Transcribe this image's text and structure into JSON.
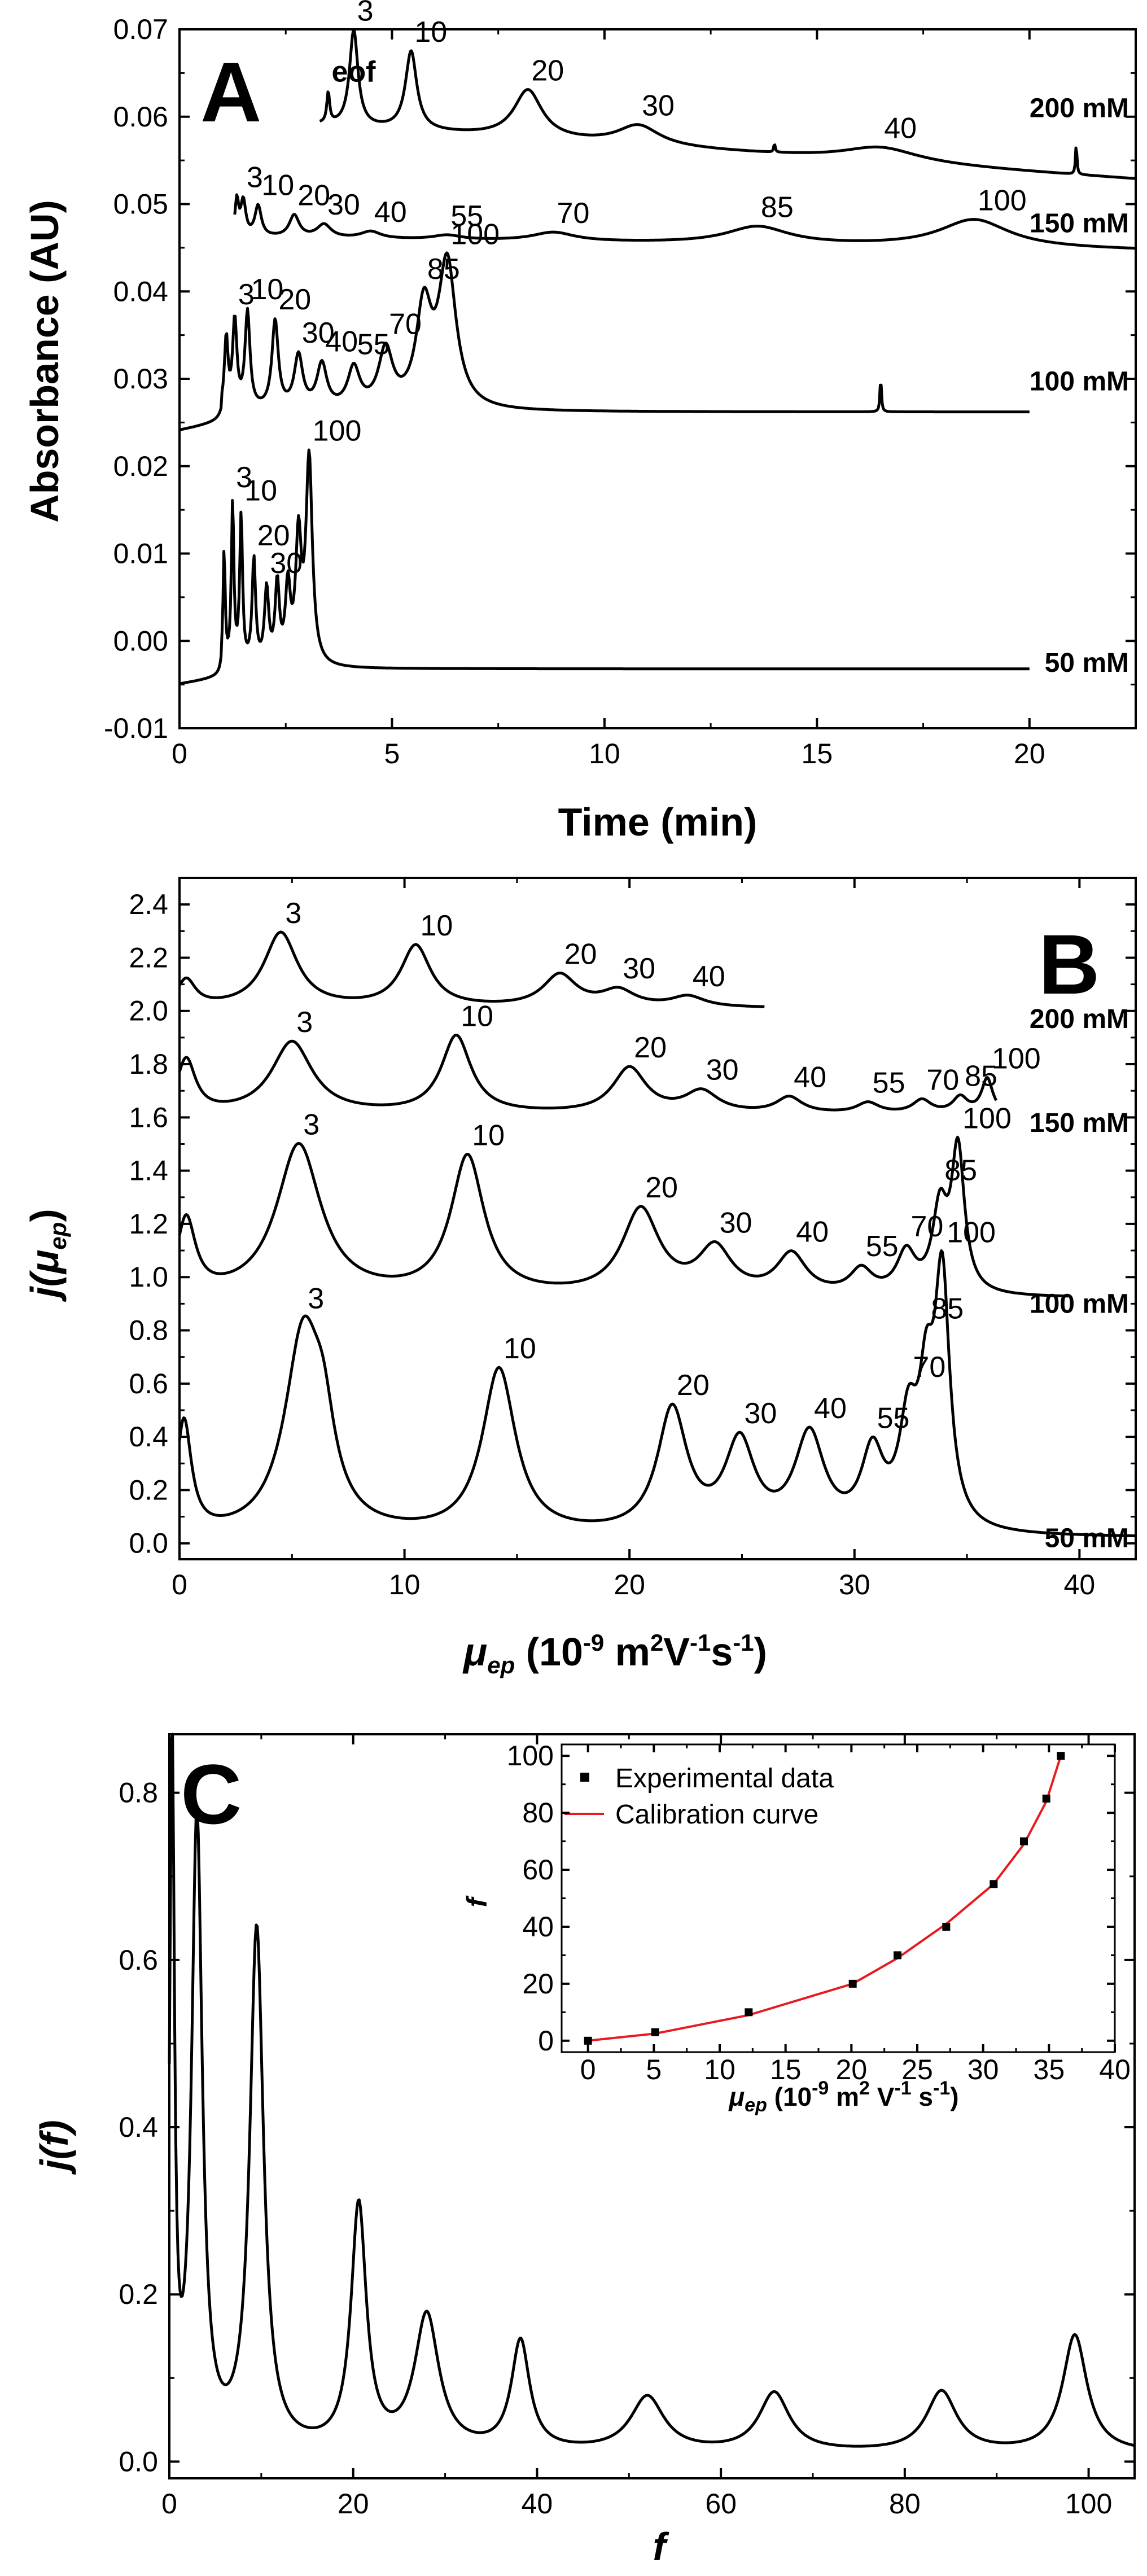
{
  "chart_data": [
    {
      "type": "line",
      "panel_label": "A",
      "xlabel": "Time (min)",
      "ylabel": "Absorbance (AU)",
      "xlim": [
        0,
        22.5
      ],
      "ylim": [
        -0.01,
        0.07
      ],
      "x_ticks": [
        0,
        5,
        10,
        15,
        20
      ],
      "y_ticks": [
        -0.01,
        0.0,
        0.01,
        0.02,
        0.03,
        0.04,
        0.05,
        0.06,
        0.07
      ],
      "y_tick_labels": [
        "-0.01",
        "0.00",
        "0.01",
        "0.02",
        "0.03",
        "0.04",
        "0.05",
        "0.06",
        "0.07"
      ],
      "series": [
        {
          "name": "200 mM",
          "baseline": 0.059,
          "drift_per_min": -0.00032,
          "t_start": 3.3,
          "t_end": 22.5,
          "pre_value": null,
          "peaks": [
            {
              "label": "eof",
              "x": 3.5,
              "height": 0.0035,
              "width": 0.04
            },
            {
              "label": "3",
              "x": 4.1,
              "height": 0.011,
              "width": 0.12
            },
            {
              "label": "10",
              "x": 5.45,
              "height": 0.009,
              "width": 0.16
            },
            {
              "label": "20",
              "x": 8.2,
              "height": 0.0055,
              "width": 0.4
            },
            {
              "label": "30",
              "x": 10.8,
              "height": 0.0023,
              "width": 0.6
            },
            {
              "label": "",
              "x": 14.0,
              "height": 0.001,
              "width": 0.02
            },
            {
              "label": "40",
              "x": 16.5,
              "height": 0.0017,
              "width": 1.1
            },
            {
              "label": "",
              "x": 21.1,
              "height": 0.0035,
              "width": 0.02
            }
          ]
        },
        {
          "name": "150 mM",
          "baseline": 0.0462,
          "drift_per_min": -7e-05,
          "t_start": 1.3,
          "t_end": 22.5,
          "pre_value": null,
          "peaks": [
            {
              "label": "",
              "x": 1.35,
              "height": 0.004,
              "width": 0.05
            },
            {
              "label": "3",
              "x": 1.5,
              "height": 0.004,
              "width": 0.07
            },
            {
              "label": "10",
              "x": 1.85,
              "height": 0.0035,
              "width": 0.09
            },
            {
              "label": "20",
              "x": 2.7,
              "height": 0.0025,
              "width": 0.14
            },
            {
              "label": "30",
              "x": 3.4,
              "height": 0.0015,
              "width": 0.2
            },
            {
              "label": "40",
              "x": 4.5,
              "height": 0.0008,
              "width": 0.28
            },
            {
              "label": "55",
              "x": 6.3,
              "height": 0.0005,
              "width": 0.4
            },
            {
              "label": "70",
              "x": 8.8,
              "height": 0.001,
              "width": 0.6
            },
            {
              "label": "85",
              "x": 13.6,
              "height": 0.002,
              "width": 0.9
            },
            {
              "label": "100",
              "x": 18.7,
              "height": 0.0032,
              "width": 1.0
            }
          ]
        },
        {
          "name": "100 mM",
          "baseline": 0.0262,
          "drift_per_min": 0.0,
          "t_start": 0.0,
          "t_end": 20.0,
          "pre_value": 0.024,
          "peaks": [
            {
              "label": "",
              "x": 1.1,
              "height": 0.008,
              "width": 0.05
            },
            {
              "label": "3",
              "x": 1.3,
              "height": 0.01,
              "width": 0.06
            },
            {
              "label": "10",
              "x": 1.6,
              "height": 0.011,
              "width": 0.07
            },
            {
              "label": "20",
              "x": 2.25,
              "height": 0.01,
              "width": 0.09
            },
            {
              "label": "30",
              "x": 2.8,
              "height": 0.006,
              "width": 0.12
            },
            {
              "label": "40",
              "x": 3.35,
              "height": 0.005,
              "width": 0.14
            },
            {
              "label": "55",
              "x": 4.1,
              "height": 0.0045,
              "width": 0.17
            },
            {
              "label": "70",
              "x": 4.85,
              "height": 0.0065,
              "width": 0.2
            },
            {
              "label": "85",
              "x": 5.75,
              "height": 0.011,
              "width": 0.22
            },
            {
              "label": "100",
              "x": 6.3,
              "height": 0.0165,
              "width": 0.25
            },
            {
              "label": "",
              "x": 16.5,
              "height": 0.004,
              "width": 0.02
            }
          ]
        },
        {
          "name": "50 mM",
          "baseline": -0.0032,
          "drift_per_min": 0.0,
          "t_start": 0.0,
          "t_end": 20.0,
          "pre_value": -0.005,
          "peaks": [
            {
              "label": "",
              "x": 1.05,
              "height": 0.013,
              "width": 0.03
            },
            {
              "label": "3",
              "x": 1.25,
              "height": 0.0185,
              "width": 0.035
            },
            {
              "label": "10",
              "x": 1.45,
              "height": 0.017,
              "width": 0.04
            },
            {
              "label": "20",
              "x": 1.75,
              "height": 0.012,
              "width": 0.05
            },
            {
              "label": "30",
              "x": 2.05,
              "height": 0.0085,
              "width": 0.06
            },
            {
              "label": "",
              "x": 2.3,
              "height": 0.009,
              "width": 0.06
            },
            {
              "label": "",
              "x": 2.55,
              "height": 0.0085,
              "width": 0.07
            },
            {
              "label": "",
              "x": 2.8,
              "height": 0.014,
              "width": 0.08
            },
            {
              "label": "100",
              "x": 3.05,
              "height": 0.0235,
              "width": 0.09
            }
          ]
        }
      ]
    },
    {
      "type": "line",
      "panel_label": "B",
      "xlabel": "μ_ep (10^-9 m^2V^-1s^-1)",
      "ylabel": "j(μ_ep)",
      "xlim": [
        0,
        42.5
      ],
      "ylim": [
        -0.06,
        2.5
      ],
      "x_ticks": [
        0,
        10,
        20,
        30,
        40
      ],
      "y_ticks": [
        0.0,
        0.2,
        0.4,
        0.6,
        0.8,
        1.0,
        1.2,
        1.4,
        1.6,
        1.8,
        2.0,
        2.2,
        2.4
      ],
      "y_tick_labels": [
        "0.0",
        "0.2",
        "0.4",
        "0.6",
        "0.8",
        "1.0",
        "1.2",
        "1.4",
        "1.6",
        "1.8",
        "2.0",
        "2.2",
        "2.4"
      ],
      "series": [
        {
          "name": "200 mM",
          "baseline": 2.01,
          "x_start": 0,
          "x_end": 26,
          "peaks": [
            {
              "label": "",
              "x": 0.3,
              "height": 0.1,
              "width": 0.5
            },
            {
              "label": "3",
              "x": 4.5,
              "height": 0.28,
              "width": 0.9
            },
            {
              "label": "10",
              "x": 10.5,
              "height": 0.23,
              "width": 0.8
            },
            {
              "label": "20",
              "x": 16.9,
              "height": 0.12,
              "width": 0.9
            },
            {
              "label": "30",
              "x": 19.5,
              "height": 0.06,
              "width": 0.9
            },
            {
              "label": "40",
              "x": 22.6,
              "height": 0.04,
              "width": 0.9
            }
          ]
        },
        {
          "name": "150 mM",
          "baseline": 1.61,
          "x_start": 0,
          "x_end": 36.3,
          "peaks": [
            {
              "label": "",
              "x": 0.3,
              "height": 0.2,
              "width": 0.5
            },
            {
              "label": "3",
              "x": 5.0,
              "height": 0.27,
              "width": 1.1
            },
            {
              "label": "10",
              "x": 12.3,
              "height": 0.29,
              "width": 0.8
            },
            {
              "label": "20",
              "x": 20.0,
              "height": 0.17,
              "width": 0.9
            },
            {
              "label": "30",
              "x": 23.2,
              "height": 0.08,
              "width": 0.9
            },
            {
              "label": "40",
              "x": 27.1,
              "height": 0.06,
              "width": 0.7
            },
            {
              "label": "55",
              "x": 30.6,
              "height": 0.04,
              "width": 0.6
            },
            {
              "label": "70",
              "x": 33.0,
              "height": 0.05,
              "width": 0.5
            },
            {
              "label": "85",
              "x": 34.7,
              "height": 0.06,
              "width": 0.4
            },
            {
              "label": "100",
              "x": 35.9,
              "height": 0.13,
              "width": 0.3
            }
          ]
        },
        {
          "name": "100 mM",
          "baseline": 0.92,
          "x_start": 0,
          "x_end": 39.5,
          "peaks": [
            {
              "label": "",
              "x": 0.3,
              "height": 0.28,
              "width": 0.5
            },
            {
              "label": "3",
              "x": 5.3,
              "height": 0.57,
              "width": 1.2
            },
            {
              "label": "10",
              "x": 12.8,
              "height": 0.52,
              "width": 0.9
            },
            {
              "label": "20",
              "x": 20.5,
              "height": 0.32,
              "width": 1.0
            },
            {
              "label": "30",
              "x": 23.8,
              "height": 0.17,
              "width": 0.9
            },
            {
              "label": "40",
              "x": 27.2,
              "height": 0.15,
              "width": 0.8
            },
            {
              "label": "55",
              "x": 30.3,
              "height": 0.09,
              "width": 0.6
            },
            {
              "label": "70",
              "x": 32.3,
              "height": 0.15,
              "width": 0.5
            },
            {
              "label": "85",
              "x": 33.8,
              "height": 0.3,
              "width": 0.4
            },
            {
              "label": "100",
              "x": 34.6,
              "height": 0.53,
              "width": 0.35
            }
          ]
        },
        {
          "name": "50 mM",
          "baseline": 0.02,
          "x_start": 0,
          "x_end": 42.5,
          "peaks": [
            {
              "label": "",
              "x": 0.2,
              "height": 0.42,
              "width": 0.4
            },
            {
              "label": "3",
              "x": 5.5,
              "height": 0.74,
              "width": 1.0
            },
            {
              "label": "",
              "x": 6.4,
              "height": 0.25,
              "width": 0.6
            },
            {
              "label": "10",
              "x": 14.2,
              "height": 0.62,
              "width": 0.9
            },
            {
              "label": "20",
              "x": 21.9,
              "height": 0.46,
              "width": 0.8
            },
            {
              "label": "30",
              "x": 24.9,
              "height": 0.33,
              "width": 0.8
            },
            {
              "label": "40",
              "x": 28.0,
              "height": 0.36,
              "width": 0.8
            },
            {
              "label": "55",
              "x": 30.8,
              "height": 0.28,
              "width": 0.6
            },
            {
              "label": "70",
              "x": 32.4,
              "height": 0.37,
              "width": 0.5
            },
            {
              "label": "85",
              "x": 33.2,
              "height": 0.43,
              "width": 0.4
            },
            {
              "label": "100",
              "x": 33.9,
              "height": 0.91,
              "width": 0.4
            }
          ]
        }
      ]
    },
    {
      "type": "line",
      "panel_label": "C",
      "xlabel": "f",
      "ylabel": "j(f)",
      "xlim": [
        0,
        105
      ],
      "ylim": [
        -0.02,
        0.87
      ],
      "x_ticks": [
        0,
        20,
        40,
        60,
        80,
        100
      ],
      "y_ticks": [
        0.0,
        0.2,
        0.4,
        0.6,
        0.8
      ],
      "y_tick_labels": [
        "0.0",
        "0.2",
        "0.4",
        "0.6",
        "0.8"
      ],
      "series": [
        {
          "name": "",
          "baseline": 0.01,
          "x_start": 0,
          "x_end": 105,
          "peaks": [
            {
              "label": "",
              "x": 0.3,
              "height": 0.84,
              "width": 0.3
            },
            {
              "label": "",
              "x": 3.0,
              "height": 0.75,
              "width": 0.7
            },
            {
              "label": "",
              "x": 9.5,
              "height": 0.62,
              "width": 0.9
            },
            {
              "label": "",
              "x": 20.6,
              "height": 0.29,
              "width": 1.0
            },
            {
              "label": "",
              "x": 28.0,
              "height": 0.16,
              "width": 1.6
            },
            {
              "label": "",
              "x": 38.2,
              "height": 0.13,
              "width": 1.2
            },
            {
              "label": "",
              "x": 52.0,
              "height": 0.065,
              "width": 2.2
            },
            {
              "label": "",
              "x": 65.8,
              "height": 0.07,
              "width": 2.0
            },
            {
              "label": "",
              "x": 84.0,
              "height": 0.072,
              "width": 2.0
            },
            {
              "label": "",
              "x": 98.5,
              "height": 0.14,
              "width": 1.6
            }
          ]
        }
      ]
    },
    {
      "type": "scatter",
      "panel_label": "C-inset",
      "xlabel": "μ_ep (10^-9 m^2 V^-1 s^-1)",
      "ylabel": "f",
      "xlim": [
        -2,
        40
      ],
      "ylim": [
        -4,
        104
      ],
      "x_ticks": [
        0,
        5,
        10,
        15,
        20,
        25,
        30,
        35,
        40
      ],
      "y_ticks": [
        0,
        20,
        40,
        60,
        80,
        100
      ],
      "legend": [
        "Experimental data",
        "Calibration curve"
      ],
      "series": [
        {
          "name": "Experimental data",
          "x": [
            0,
            5.1,
            12.2,
            20.1,
            23.5,
            27.2,
            30.8,
            33.1,
            34.8,
            35.9
          ],
          "y": [
            0,
            3,
            10,
            20,
            30,
            40,
            55,
            70,
            85,
            100
          ]
        },
        {
          "name": "Calibration curve",
          "color": "#e8191f",
          "x": [
            0,
            5.1,
            12.2,
            20.1,
            23.5,
            27.2,
            30.8,
            33.1,
            34.8,
            35.9
          ],
          "y": [
            0,
            2.5,
            9,
            20,
            29,
            41,
            55,
            69,
            84,
            100
          ]
        }
      ]
    }
  ],
  "labels": {
    "panelA": {
      "letter": "A",
      "xlabel": "Time (min)",
      "ylabel": "Absorbance (AU)",
      "conc": [
        "200 mM",
        "150 mM",
        "100 mM",
        "50 mM"
      ]
    },
    "panelB": {
      "letter": "B",
      "xlabel_mu": "μ",
      "xlabel_sub": "ep",
      "xlabel_open": " (10",
      "xlabel_exp1": "-9",
      "xlabel_m": " m",
      "xlabel_exp2": "2",
      "xlabel_V": "V",
      "xlabel_exp3": "-1",
      "xlabel_s": "s",
      "xlabel_exp4": "-1",
      "xlabel_close": ")",
      "ylabel_j": "j(",
      "ylabel_mu": "μ",
      "ylabel_sub": "ep",
      "ylabel_close": ")",
      "conc": [
        "200 mM",
        "150 mM",
        "100 mM",
        "50 mM"
      ]
    },
    "panelC": {
      "letter": "C",
      "xlabel": "f",
      "ylabel": "j(f)",
      "inset_ylabel": "f",
      "inset_xlabel_mu": "μ",
      "inset_xlabel_sub": "ep",
      "inset_xlabel_open": "  (10",
      "inset_xlabel_exp1": "-9",
      "inset_xlabel_m": " m",
      "inset_xlabel_exp2": "2",
      "inset_xlabel_V": " V",
      "inset_xlabel_exp3": "-1",
      "inset_xlabel_s": " s",
      "inset_xlabel_exp4": "-1",
      "inset_xlabel_close": ")",
      "legend_experimental": "Experimental data",
      "legend_calibration": "Calibration curve"
    }
  }
}
